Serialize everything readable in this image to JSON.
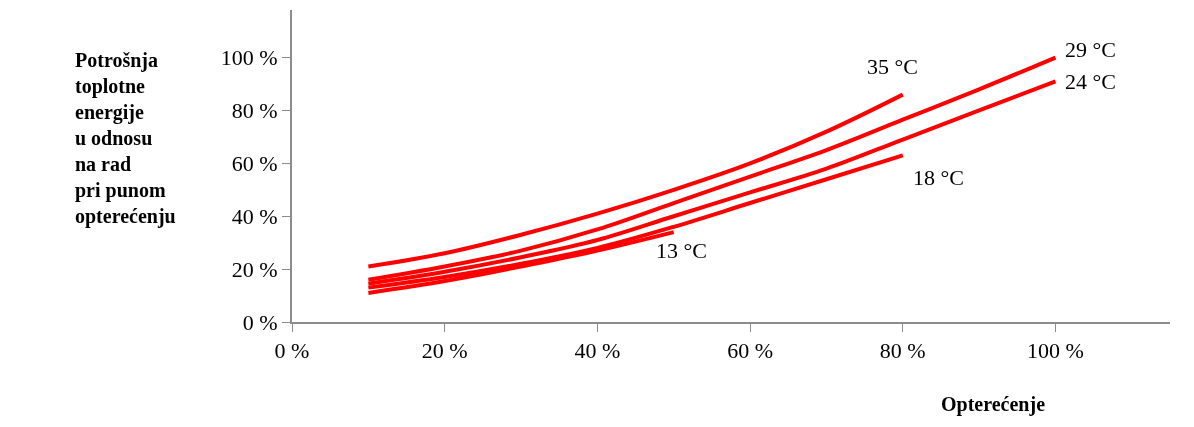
{
  "chart_data": {
    "type": "line",
    "xlabel": "Opterećenje",
    "ylabel": "Potrošnja\ntoplotne\nenergije\nu odnosu\nna rad\npri punom\nopterećenju",
    "series": [
      {
        "name": "35 °C",
        "color": "#ff0000",
        "x": [
          10,
          20,
          30,
          40,
          50,
          60,
          70,
          80
        ],
        "values": [
          21,
          26,
          33,
          41,
          50,
          60,
          72,
          86
        ]
      },
      {
        "name": "29 °C",
        "color": "#ff0000",
        "x": [
          10,
          20,
          30,
          40,
          50,
          60,
          70,
          80,
          90,
          100
        ],
        "values": [
          16,
          21,
          27,
          35,
          45,
          55,
          65,
          76.5,
          88,
          100
        ]
      },
      {
        "name": "24 °C",
        "color": "#ff0000",
        "x": [
          10,
          20,
          30,
          40,
          50,
          60,
          70,
          80,
          90,
          100
        ],
        "values": [
          14.5,
          19,
          24.5,
          31,
          40,
          49,
          58,
          69,
          80,
          91
        ]
      },
      {
        "name": "18 °C",
        "color": "#ff0000",
        "x": [
          10,
          20,
          30,
          40,
          50,
          60,
          70,
          80
        ],
        "values": [
          13,
          17,
          22,
          28,
          36,
          45,
          54,
          63
        ]
      },
      {
        "name": "13 °C",
        "color": "#ff0000",
        "x": [
          10,
          20,
          30,
          40,
          50
        ],
        "values": [
          11,
          15.5,
          21,
          27,
          34
        ]
      }
    ],
    "xlim": [
      0,
      115
    ],
    "ylim": [
      0,
      118
    ],
    "xticks": [
      {
        "value": 0,
        "label": "0 %"
      },
      {
        "value": 20,
        "label": "20 %"
      },
      {
        "value": 40,
        "label": "40 %"
      },
      {
        "value": 60,
        "label": "60 %"
      },
      {
        "value": 80,
        "label": "80 %"
      },
      {
        "value": 100,
        "label": "100 %"
      }
    ],
    "yticks": [
      {
        "value": 0,
        "label": "0 %"
      },
      {
        "value": 20,
        "label": "20 %"
      },
      {
        "value": 40,
        "label": "40 %"
      },
      {
        "value": 60,
        "label": "60 %"
      },
      {
        "value": 80,
        "label": "80 %"
      },
      {
        "value": 100,
        "label": "100 %"
      }
    ],
    "legend": false,
    "marker": "none",
    "line_style": "solid"
  }
}
